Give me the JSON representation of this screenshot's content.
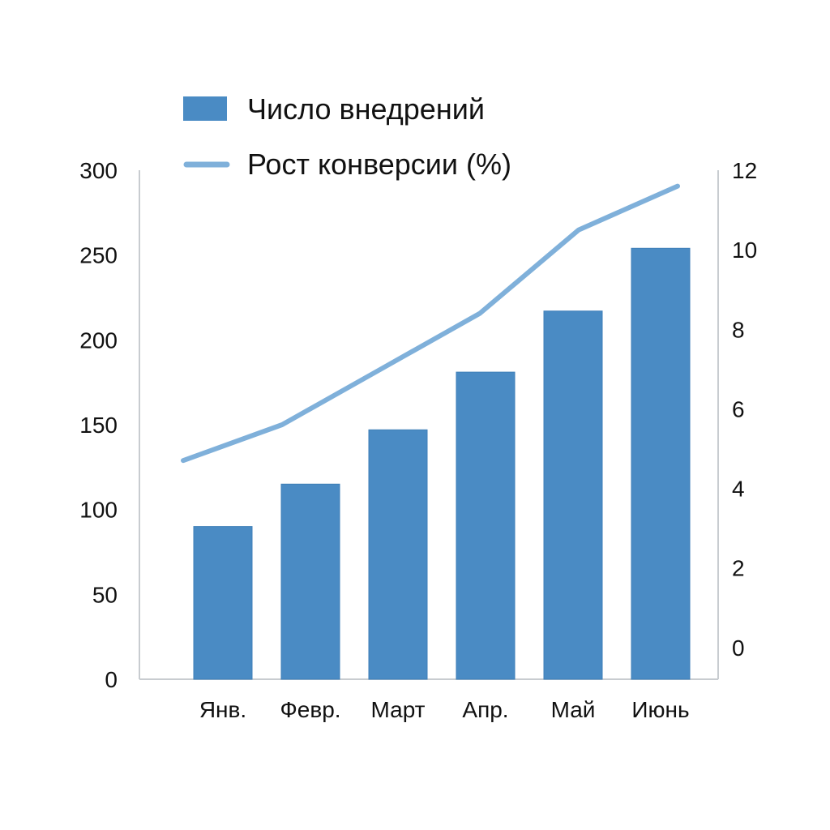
{
  "chart_data": {
    "type": "bar",
    "categories": [
      "Янв.",
      "Февр.",
      "Март",
      "Апр.",
      "Май",
      "Июнь"
    ],
    "series": [
      {
        "name": "Число внедрений",
        "kind": "bar",
        "axis": "left",
        "values": [
          90,
          115,
          147,
          181,
          217,
          254
        ]
      },
      {
        "name": "Рост конверсии (%)",
        "kind": "line",
        "axis": "right",
        "values": [
          4.7,
          5.6,
          7.0,
          8.4,
          10.5,
          11.6
        ]
      }
    ],
    "left_axis": {
      "ylim": [
        0,
        300
      ],
      "ticks": [
        0,
        50,
        100,
        150,
        200,
        250,
        300
      ],
      "tick_labels": [
        "0",
        "50",
        "100",
        "150",
        "200",
        "250",
        "300"
      ]
    },
    "right_axis": {
      "ylim": [
        -0.8,
        12
      ],
      "ticks": [
        0,
        2,
        4,
        6,
        8,
        10,
        12
      ],
      "tick_labels": [
        "0",
        "2",
        "4",
        "6",
        "8",
        "10",
        "12"
      ]
    },
    "legend": {
      "placement": "top",
      "entries": [
        "Число внедрений",
        "Рост конверсии (%)"
      ]
    },
    "grid": false,
    "colors": {
      "bar": "#4a8bc4",
      "line": "#7fb0da",
      "axis": "#c8ccd0"
    }
  }
}
